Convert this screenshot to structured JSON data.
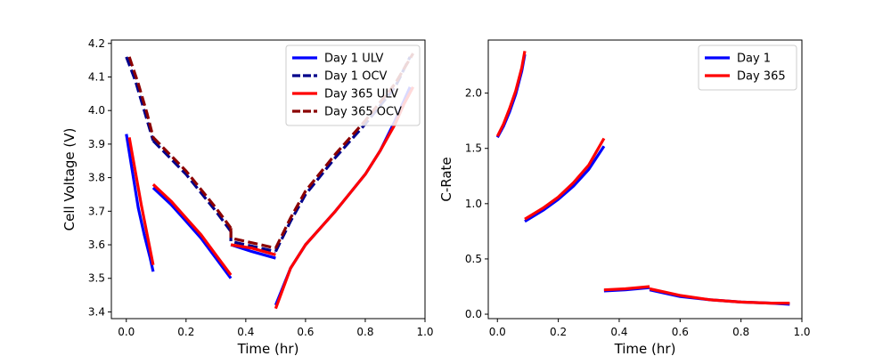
{
  "chart_data": [
    {
      "type": "line",
      "xlabel": "Time (hr)",
      "ylabel": "Cell Voltage (V)",
      "xlim": [
        -0.05,
        1.0
      ],
      "ylim": [
        3.38,
        4.21
      ],
      "xticks": [
        "0.0",
        "0.2",
        "0.4",
        "0.6",
        "0.8",
        "1.0"
      ],
      "yticks": [
        "3.4",
        "3.5",
        "3.6",
        "3.7",
        "3.8",
        "3.9",
        "4.0",
        "4.1",
        "4.2"
      ],
      "legend_position": "top-right",
      "series": [
        {
          "name": "Day 1 ULV",
          "color": "#0000ff",
          "dash": "solid",
          "segments": [
            [
              [
                0.0,
                3.93
              ],
              [
                0.02,
                3.82
              ],
              [
                0.04,
                3.71
              ],
              [
                0.06,
                3.63
              ],
              [
                0.08,
                3.56
              ],
              [
                0.09,
                3.52
              ]
            ],
            [
              [
                0.09,
                3.77
              ],
              [
                0.15,
                3.72
              ],
              [
                0.2,
                3.67
              ],
              [
                0.25,
                3.62
              ],
              [
                0.3,
                3.56
              ],
              [
                0.35,
                3.5
              ]
            ],
            [
              [
                0.35,
                3.6
              ],
              [
                0.42,
                3.58
              ],
              [
                0.5,
                3.56
              ]
            ],
            [
              [
                0.5,
                3.42
              ],
              [
                0.55,
                3.53
              ],
              [
                0.6,
                3.6
              ],
              [
                0.7,
                3.7
              ],
              [
                0.8,
                3.81
              ],
              [
                0.85,
                3.88
              ],
              [
                0.9,
                3.97
              ],
              [
                0.93,
                4.03
              ],
              [
                0.95,
                4.07
              ]
            ]
          ]
        },
        {
          "name": "Day 1 OCV",
          "color": "#00008b",
          "dash": "dashed",
          "segments": [
            [
              [
                0.0,
                4.16
              ],
              [
                0.03,
                4.09
              ],
              [
                0.06,
                4.0
              ],
              [
                0.09,
                3.91
              ]
            ],
            [
              [
                0.09,
                3.91
              ],
              [
                0.2,
                3.81
              ],
              [
                0.3,
                3.7
              ],
              [
                0.35,
                3.64
              ]
            ],
            [
              [
                0.35,
                3.64
              ],
              [
                0.35,
                3.61
              ],
              [
                0.5,
                3.58
              ]
            ],
            [
              [
                0.5,
                3.58
              ],
              [
                0.55,
                3.67
              ],
              [
                0.6,
                3.75
              ],
              [
                0.7,
                3.86
              ],
              [
                0.8,
                3.96
              ],
              [
                0.9,
                4.07
              ],
              [
                0.95,
                4.16
              ]
            ]
          ]
        },
        {
          "name": "Day 365 ULV",
          "color": "#ff0000",
          "dash": "solid",
          "segments": [
            [
              [
                0.01,
                3.92
              ],
              [
                0.03,
                3.82
              ],
              [
                0.05,
                3.72
              ],
              [
                0.07,
                3.63
              ],
              [
                0.09,
                3.54
              ]
            ],
            [
              [
                0.09,
                3.78
              ],
              [
                0.15,
                3.73
              ],
              [
                0.2,
                3.68
              ],
              [
                0.25,
                3.63
              ],
              [
                0.3,
                3.57
              ],
              [
                0.35,
                3.51
              ]
            ],
            [
              [
                0.35,
                3.6
              ],
              [
                0.42,
                3.59
              ],
              [
                0.5,
                3.57
              ]
            ],
            [
              [
                0.5,
                3.41
              ],
              [
                0.55,
                3.53
              ],
              [
                0.6,
                3.6
              ],
              [
                0.7,
                3.7
              ],
              [
                0.8,
                3.81
              ],
              [
                0.85,
                3.88
              ],
              [
                0.9,
                3.96
              ],
              [
                0.93,
                4.02
              ],
              [
                0.96,
                4.07
              ]
            ]
          ]
        },
        {
          "name": "Day 365 OCV",
          "color": "#8b0000",
          "dash": "dashed",
          "segments": [
            [
              [
                0.01,
                4.16
              ],
              [
                0.04,
                4.08
              ],
              [
                0.07,
                3.99
              ],
              [
                0.09,
                3.92
              ]
            ],
            [
              [
                0.09,
                3.92
              ],
              [
                0.2,
                3.82
              ],
              [
                0.3,
                3.71
              ],
              [
                0.35,
                3.65
              ]
            ],
            [
              [
                0.35,
                3.65
              ],
              [
                0.35,
                3.62
              ],
              [
                0.5,
                3.59
              ]
            ],
            [
              [
                0.5,
                3.59
              ],
              [
                0.55,
                3.68
              ],
              [
                0.6,
                3.76
              ],
              [
                0.7,
                3.87
              ],
              [
                0.8,
                3.97
              ],
              [
                0.9,
                4.08
              ],
              [
                0.96,
                4.17
              ]
            ]
          ]
        }
      ]
    },
    {
      "type": "line",
      "xlabel": "Time (hr)",
      "ylabel": "C-Rate",
      "xlim": [
        -0.03,
        1.0
      ],
      "ylim": [
        -0.04,
        2.48
      ],
      "xticks": [
        "0.0",
        "0.2",
        "0.4",
        "0.6",
        "0.8",
        "1.0"
      ],
      "yticks": [
        "0.0",
        "0.5",
        "1.0",
        "1.5",
        "2.0"
      ],
      "legend_position": "top-right",
      "series": [
        {
          "name": "Day 1",
          "color": "#0000ff",
          "dash": "solid",
          "segments": [
            [
              [
                0.0,
                1.6
              ],
              [
                0.02,
                1.7
              ],
              [
                0.04,
                1.83
              ],
              [
                0.06,
                1.99
              ],
              [
                0.08,
                2.2
              ],
              [
                0.09,
                2.35
              ]
            ],
            [
              [
                0.09,
                0.84
              ],
              [
                0.15,
                0.94
              ],
              [
                0.2,
                1.04
              ],
              [
                0.25,
                1.16
              ],
              [
                0.3,
                1.31
              ],
              [
                0.35,
                1.52
              ]
            ],
            [
              [
                0.35,
                0.21
              ],
              [
                0.42,
                0.22
              ],
              [
                0.5,
                0.24
              ]
            ],
            [
              [
                0.5,
                0.22
              ],
              [
                0.55,
                0.19
              ],
              [
                0.6,
                0.16
              ],
              [
                0.7,
                0.13
              ],
              [
                0.8,
                0.11
              ],
              [
                0.9,
                0.1
              ],
              [
                0.96,
                0.09
              ]
            ]
          ]
        },
        {
          "name": "Day 365",
          "color": "#ff0000",
          "dash": "solid",
          "segments": [
            [
              [
                0.0,
                1.61
              ],
              [
                0.02,
                1.72
              ],
              [
                0.04,
                1.86
              ],
              [
                0.06,
                2.02
              ],
              [
                0.08,
                2.23
              ],
              [
                0.09,
                2.38
              ]
            ],
            [
              [
                0.09,
                0.86
              ],
              [
                0.15,
                0.96
              ],
              [
                0.2,
                1.06
              ],
              [
                0.25,
                1.19
              ],
              [
                0.3,
                1.35
              ],
              [
                0.35,
                1.59
              ]
            ],
            [
              [
                0.35,
                0.22
              ],
              [
                0.42,
                0.23
              ],
              [
                0.5,
                0.25
              ]
            ],
            [
              [
                0.5,
                0.23
              ],
              [
                0.55,
                0.2
              ],
              [
                0.6,
                0.17
              ],
              [
                0.7,
                0.13
              ],
              [
                0.8,
                0.11
              ],
              [
                0.9,
                0.1
              ],
              [
                0.96,
                0.1
              ]
            ]
          ]
        }
      ]
    }
  ]
}
